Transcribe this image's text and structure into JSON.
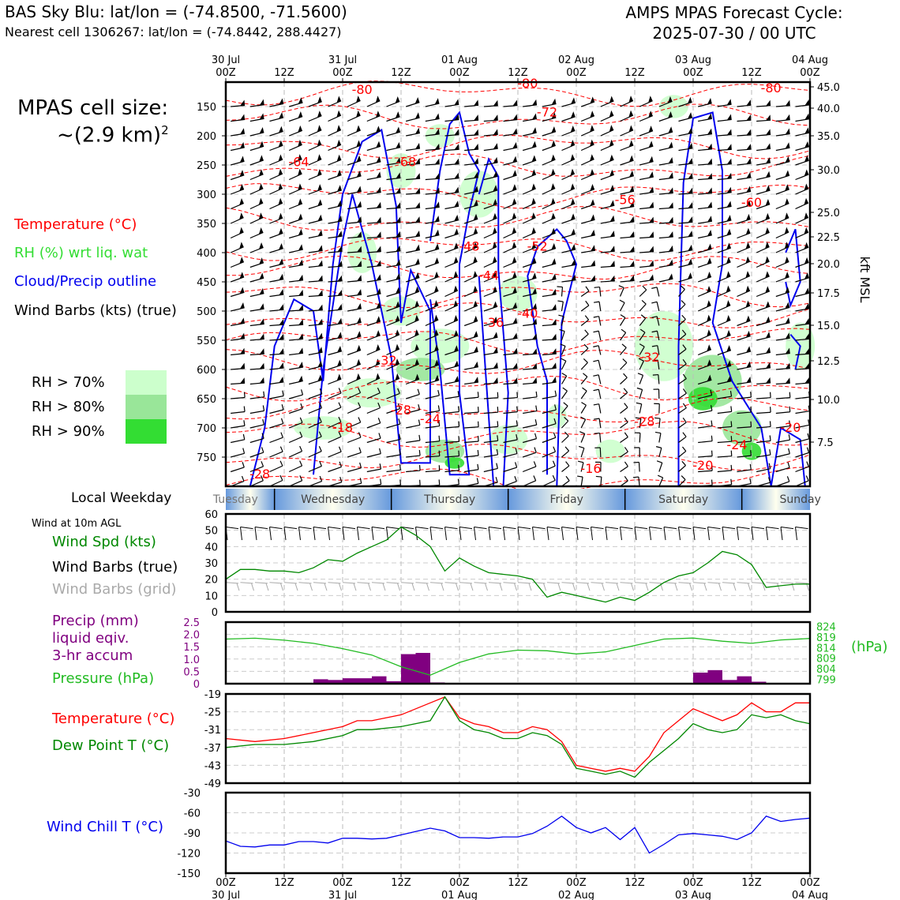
{
  "header": {
    "title_left": "BAS Sky Blu: lat/lon = (-74.8500, -71.5600)",
    "subtitle_left": "Nearest cell 1306267: lat/lon = (-74.8442, 288.4427)",
    "title_right_line1": "AMPS MPAS Forecast Cycle:",
    "title_right_line2": "2025-07-30 / 00 UTC"
  },
  "time_axis": {
    "ticks": [
      {
        "hour": 0,
        "hh": "00Z",
        "date": "30 Jul"
      },
      {
        "hour": 12,
        "hh": "12Z",
        "date": ""
      },
      {
        "hour": 24,
        "hh": "00Z",
        "date": "31 Jul"
      },
      {
        "hour": 36,
        "hh": "12Z",
        "date": ""
      },
      {
        "hour": 48,
        "hh": "00Z",
        "date": "01 Aug"
      },
      {
        "hour": 60,
        "hh": "12Z",
        "date": ""
      },
      {
        "hour": 72,
        "hh": "00Z",
        "date": "02 Aug"
      },
      {
        "hour": 84,
        "hh": "12Z",
        "date": ""
      },
      {
        "hour": 96,
        "hh": "00Z",
        "date": "03 Aug"
      },
      {
        "hour": 108,
        "hh": "12Z",
        "date": ""
      },
      {
        "hour": 120,
        "hh": "00Z",
        "date": "04 Aug"
      }
    ],
    "range_hours": [
      0,
      120
    ]
  },
  "panel_labels": {
    "cell_size_title": "MPAS cell size:",
    "cell_size_value": "~(2.9 km)",
    "cell_size_exp": "2",
    "temperature": "Temperature (°C)",
    "rh": "RH (%) wrt liq. wat",
    "cloud": "Cloud/Precip outline",
    "wind_barbs": "Wind Barbs (kts) (true)",
    "rh70": "RH > 70%",
    "rh80": "RH > 80%",
    "rh90": "RH > 90%",
    "kft_axis": "kft MSL",
    "local_weekday": "Local Weekday",
    "wind_10m": "Wind at 10m AGL",
    "wind_spd": "Wind Spd (kts)",
    "wind_barbs_true": "Wind Barbs (true)",
    "wind_barbs_grid": "Wind Barbs (grid)",
    "precip1": "Precip (mm)",
    "precip2": "liquid eqiv.",
    "precip3": "3-hr accum",
    "pressure": "Pressure (hPa)",
    "hpa": "(hPa)",
    "temp": "Temperature (°C)",
    "dewpoint": "Dew Point T (°C)",
    "windchill": "Wind Chill T (°C)"
  },
  "colors": {
    "temp": "#ff0000",
    "rh70": "#ccffcc",
    "rh80": "#99e699",
    "rh90": "#33dd33",
    "cloud": "#0000ee",
    "wind_spd": "#008800",
    "precip": "#800080",
    "pressure": "#22bb22",
    "dew": "#008800",
    "windchill": "#0000ee",
    "grid_barb": "#aaaaaa"
  },
  "chart_data": [
    {
      "type": "heatmap",
      "description_panel": "time-height cross-section",
      "y_pressure_ticks": [
        "150",
        "200",
        "250",
        "300",
        "350",
        "400",
        "450",
        "500",
        "550",
        "600",
        "650",
        "700",
        "750"
      ],
      "y_kft_ticks": [
        "45.0",
        "40.0",
        "35.0",
        "30.0",
        "25.0",
        "22.5",
        "20.0",
        "17.5",
        "15.0",
        "12.5",
        "10.0",
        "7.5"
      ],
      "temperature_contour_labels": [
        {
          "t": -80,
          "hour": 28,
          "hpa": 115
        },
        {
          "t": -80,
          "hour": 62,
          "hpa": 102
        },
        {
          "t": -80,
          "hour": 112,
          "hpa": 112
        },
        {
          "t": -72,
          "hour": 66,
          "hpa": 160
        },
        {
          "t": -68,
          "hour": 37,
          "hpa": 245
        },
        {
          "t": -64,
          "hour": 15,
          "hpa": 245
        },
        {
          "t": -56,
          "hour": 82,
          "hpa": 310
        },
        {
          "t": -60,
          "hour": 108,
          "hpa": 315
        },
        {
          "t": -52,
          "hour": 64,
          "hpa": 390
        },
        {
          "t": -48,
          "hour": 50,
          "hpa": 390
        },
        {
          "t": -44,
          "hour": 54,
          "hpa": 440
        },
        {
          "t": -40,
          "hour": 62,
          "hpa": 505
        },
        {
          "t": -36,
          "hour": 55,
          "hpa": 520
        },
        {
          "t": -32,
          "hour": 33,
          "hpa": 585
        },
        {
          "t": -32,
          "hour": 87,
          "hpa": 580
        },
        {
          "t": -28,
          "hour": 36,
          "hpa": 670
        },
        {
          "t": -28,
          "hour": 86,
          "hpa": 690
        },
        {
          "t": -24,
          "hour": 42,
          "hpa": 685
        },
        {
          "t": -24,
          "hour": 105,
          "hpa": 730
        },
        {
          "t": -28,
          "hour": 7,
          "hpa": 780
        },
        {
          "t": -16,
          "hour": 75,
          "hpa": 770
        },
        {
          "t": -20,
          "hour": 98,
          "hpa": 765
        },
        {
          "t": -20,
          "hour": 116,
          "hpa": 700
        },
        {
          "t": -18,
          "hour": 24,
          "hpa": 700
        }
      ],
      "weekdays": [
        "Tuesday",
        "Wednesday",
        "Thursday",
        "Friday",
        "Saturday",
        "Sunday"
      ]
    },
    {
      "type": "line",
      "title": "Wind Spd (kts)",
      "ylim": [
        0,
        60
      ],
      "y_ticks": [
        "0",
        "10",
        "20",
        "30",
        "40",
        "50",
        "60"
      ],
      "x_hours": [
        0,
        3,
        6,
        9,
        12,
        15,
        18,
        21,
        24,
        27,
        30,
        33,
        36,
        39,
        42,
        45,
        48,
        51,
        54,
        57,
        60,
        63,
        66,
        69,
        72,
        75,
        78,
        81,
        84,
        87,
        90,
        93,
        96,
        99,
        102,
        105,
        108,
        111,
        114,
        117,
        120
      ],
      "values": [
        20,
        26,
        26,
        25,
        25,
        24,
        27,
        32,
        31,
        36,
        40,
        44,
        52,
        47,
        40,
        25,
        33,
        28,
        24,
        23,
        22,
        20,
        9,
        12,
        10,
        8,
        6,
        9,
        7,
        12,
        18,
        22,
        24,
        30,
        37,
        35,
        29,
        15,
        16,
        17,
        17
      ]
    },
    {
      "type": "bar",
      "title": "Precip (mm)",
      "ylim": [
        0,
        2.5
      ],
      "y_ticks": [
        "0",
        "0.5",
        "1.0",
        "1.5",
        "2.0",
        "2.5"
      ],
      "x_hours": [
        15,
        18,
        21,
        24,
        27,
        30,
        33,
        36,
        39,
        42,
        45,
        60,
        96,
        99,
        102,
        105,
        108
      ],
      "values": [
        0.03,
        0.18,
        0.15,
        0.22,
        0.22,
        0.3,
        0.1,
        1.2,
        1.25,
        0.05,
        0.03,
        0.02,
        0.45,
        0.55,
        0.15,
        0.3,
        0.08
      ],
      "pressure_hours": [
        0,
        6,
        12,
        18,
        24,
        30,
        36,
        42,
        48,
        54,
        60,
        66,
        72,
        78,
        84,
        90,
        96,
        102,
        108,
        114,
        120
      ],
      "pressure_values": [
        818,
        818.4,
        817.5,
        816,
        813.5,
        810.5,
        805,
        801,
        807,
        811,
        812.8,
        812.5,
        811,
        812,
        815,
        818,
        818.5,
        817,
        816,
        817.6,
        818.3
      ],
      "pressure_ticks": [
        "824",
        "819",
        "814",
        "809",
        "804",
        "799"
      ]
    },
    {
      "type": "line",
      "title": "Temperature (°C)",
      "ylim": [
        -49,
        -19
      ],
      "y_ticks": [
        "-19",
        "-25",
        "-31",
        "-37",
        "-43",
        "-49"
      ],
      "x_hours": [
        0,
        6,
        12,
        18,
        24,
        27,
        30,
        36,
        42,
        45,
        48,
        51,
        54,
        57,
        60,
        63,
        66,
        69,
        72,
        75,
        78,
        81,
        84,
        87,
        90,
        93,
        96,
        99,
        102,
        105,
        108,
        111,
        114,
        117,
        120
      ],
      "series": [
        {
          "name": "Temperature (°C)",
          "values": [
            -34,
            -35,
            -34,
            -32,
            -30,
            -28,
            -28,
            -26,
            -22,
            -20,
            -27,
            -29,
            -30,
            -32,
            -32,
            -30,
            -31,
            -35,
            -43,
            -44,
            -45,
            -44,
            -45,
            -40,
            -32,
            -28,
            -24,
            -26,
            -28,
            -26,
            -22,
            -25,
            -25,
            -22,
            -22
          ]
        },
        {
          "name": "Dew Point T (°C)",
          "values": [
            -37,
            -36,
            -36,
            -35,
            -33,
            -31,
            -31,
            -30,
            -28,
            -20,
            -28,
            -31,
            -32,
            -34,
            -34,
            -32,
            -33,
            -36,
            -44,
            -45,
            -46,
            -45,
            -47,
            -42,
            -38,
            -34,
            -29,
            -31,
            -32,
            -31,
            -26,
            -27,
            -26,
            -28,
            -29
          ]
        }
      ]
    },
    {
      "type": "line",
      "title": "Wind Chill T (°C)",
      "ylim": [
        -150,
        -30
      ],
      "y_ticks": [
        "-30",
        "-60",
        "-90",
        "-120",
        "-150"
      ],
      "x_hours": [
        0,
        3,
        6,
        9,
        12,
        15,
        18,
        21,
        24,
        27,
        30,
        33,
        36,
        39,
        42,
        45,
        48,
        51,
        54,
        57,
        60,
        63,
        66,
        69,
        72,
        75,
        78,
        81,
        84,
        87,
        90,
        93,
        96,
        99,
        102,
        105,
        108,
        111,
        114,
        117,
        120
      ],
      "values": [
        -102,
        -110,
        -111,
        -108,
        -108,
        -103,
        -103,
        -105,
        -98,
        -98,
        -99,
        -98,
        -93,
        -88,
        -83,
        -87,
        -97,
        -97,
        -98,
        -96,
        -96,
        -91,
        -80,
        -65,
        -82,
        -90,
        -82,
        -100,
        -82,
        -120,
        -107,
        -93,
        -91,
        -93,
        -95,
        -100,
        -90,
        -65,
        -73,
        -70,
        -68
      ]
    }
  ]
}
